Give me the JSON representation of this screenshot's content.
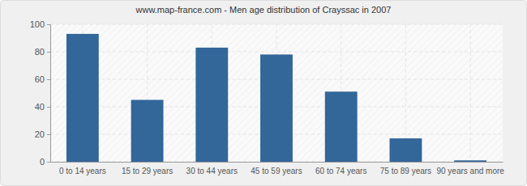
{
  "chart_data": {
    "type": "bar",
    "title": "www.map-france.com - Men age distribution of Crayssac in 2007",
    "categories": [
      "0 to 14 years",
      "15 to 29 years",
      "30 to 44 years",
      "45 to 59 years",
      "60 to 74 years",
      "75 to 89 years",
      "90 years and more"
    ],
    "values": [
      93,
      45,
      83,
      78,
      51,
      17,
      1
    ],
    "color": "#336699",
    "ylim": [
      0,
      100
    ],
    "yticks": [
      0,
      20,
      40,
      60,
      80,
      100
    ],
    "grid": true
  }
}
